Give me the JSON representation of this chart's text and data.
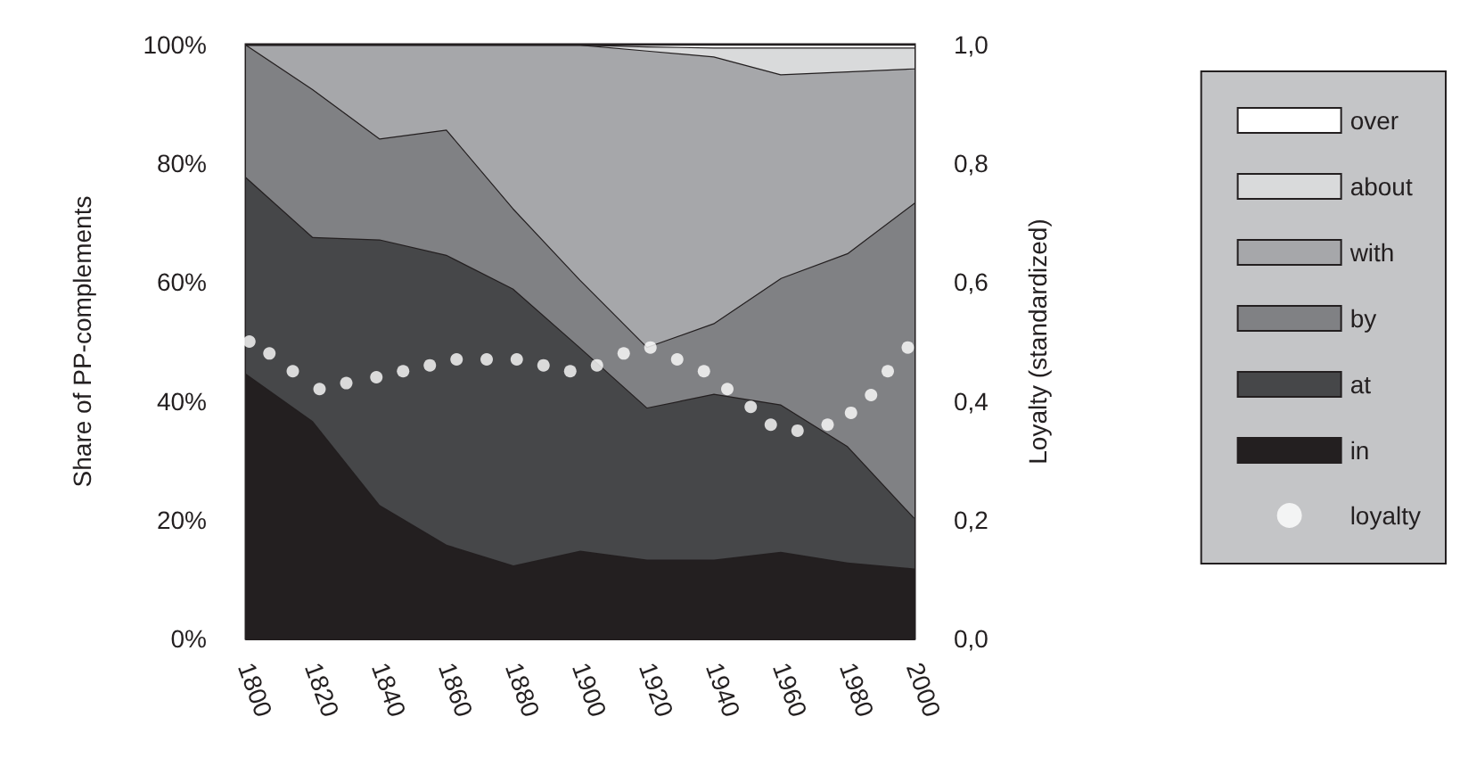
{
  "chart_data": {
    "type": "area",
    "stacked": true,
    "ylabel": "Share of PP-complements",
    "y2label": "Loyalty (standardized)",
    "x": [
      1800,
      1820,
      1840,
      1860,
      1880,
      1900,
      1920,
      1940,
      1960,
      1980,
      2000
    ],
    "xlim": [
      1800,
      2000
    ],
    "xticks": [
      1800,
      1820,
      1840,
      1860,
      1880,
      1900,
      1920,
      1940,
      1960,
      1980,
      2000
    ],
    "ylim": [
      0,
      100
    ],
    "yticks": [
      {
        "value": 0,
        "label": "0%"
      },
      {
        "value": 20,
        "label": "20%"
      },
      {
        "value": 40,
        "label": "40%"
      },
      {
        "value": 60,
        "label": "60%"
      },
      {
        "value": 80,
        "label": "80%"
      },
      {
        "value": 100,
        "label": "100%"
      }
    ],
    "y2lim": [
      0,
      1
    ],
    "y2ticks": [
      {
        "value": 0,
        "label": "0,0"
      },
      {
        "value": 0.2,
        "label": "0,2"
      },
      {
        "value": 0.4,
        "label": "0,4"
      },
      {
        "value": 0.6,
        "label": "0,6"
      },
      {
        "value": 0.8,
        "label": "0,8"
      },
      {
        "value": 1,
        "label": "1,0"
      }
    ],
    "legend": "right",
    "grid": false,
    "series": [
      {
        "name": "in",
        "color": "#231f20",
        "values": [
          44.6,
          36.6,
          22.5,
          15.8,
          12.3,
          14.8,
          13.3,
          13.3,
          14.6,
          12.8,
          11.8
        ]
      },
      {
        "name": "at",
        "color": "#464749",
        "values": [
          33.1,
          31.0,
          44.7,
          48.8,
          46.6,
          34.2,
          25.6,
          27.9,
          24.8,
          19.6,
          8.5
        ]
      },
      {
        "name": "by",
        "color": "#808184",
        "values": [
          22.3,
          24.9,
          17.0,
          21.1,
          13.5,
          11.4,
          10.2,
          11.9,
          21.3,
          32.5,
          53.1
        ]
      },
      {
        "name": "with",
        "color": "#a6a7aa",
        "values": [
          0,
          7.5,
          15.8,
          14.3,
          27.6,
          39.6,
          49.9,
          44.9,
          34.3,
          30.6,
          22.6
        ]
      },
      {
        "name": "about",
        "color": "#d9dadb",
        "values": [
          0,
          0,
          0,
          0,
          0,
          0,
          0.7,
          1.5,
          4.5,
          4.0,
          3.5
        ]
      },
      {
        "name": "over",
        "color": "#ffffff",
        "values": [
          0,
          0,
          0,
          0,
          0,
          0,
          0.3,
          0.5,
          0.5,
          0.5,
          0.5
        ]
      },
      {
        "name": "loyalty",
        "type": "scatter",
        "axis": "y2",
        "color": "#ffffff",
        "marker": "circle",
        "x": [
          1801,
          1807,
          1814,
          1822,
          1830,
          1839,
          1847,
          1855,
          1863,
          1872,
          1881,
          1889,
          1897,
          1905,
          1913,
          1921,
          1929,
          1937,
          1944,
          1951,
          1957,
          1965,
          1974,
          1981,
          1987,
          1992,
          1998
        ],
        "values": [
          0.5,
          0.48,
          0.45,
          0.42,
          0.43,
          0.44,
          0.45,
          0.46,
          0.47,
          0.47,
          0.47,
          0.46,
          0.45,
          0.46,
          0.48,
          0.49,
          0.47,
          0.45,
          0.42,
          0.39,
          0.36,
          0.35,
          0.36,
          0.38,
          0.41,
          0.45,
          0.49
        ]
      }
    ]
  }
}
